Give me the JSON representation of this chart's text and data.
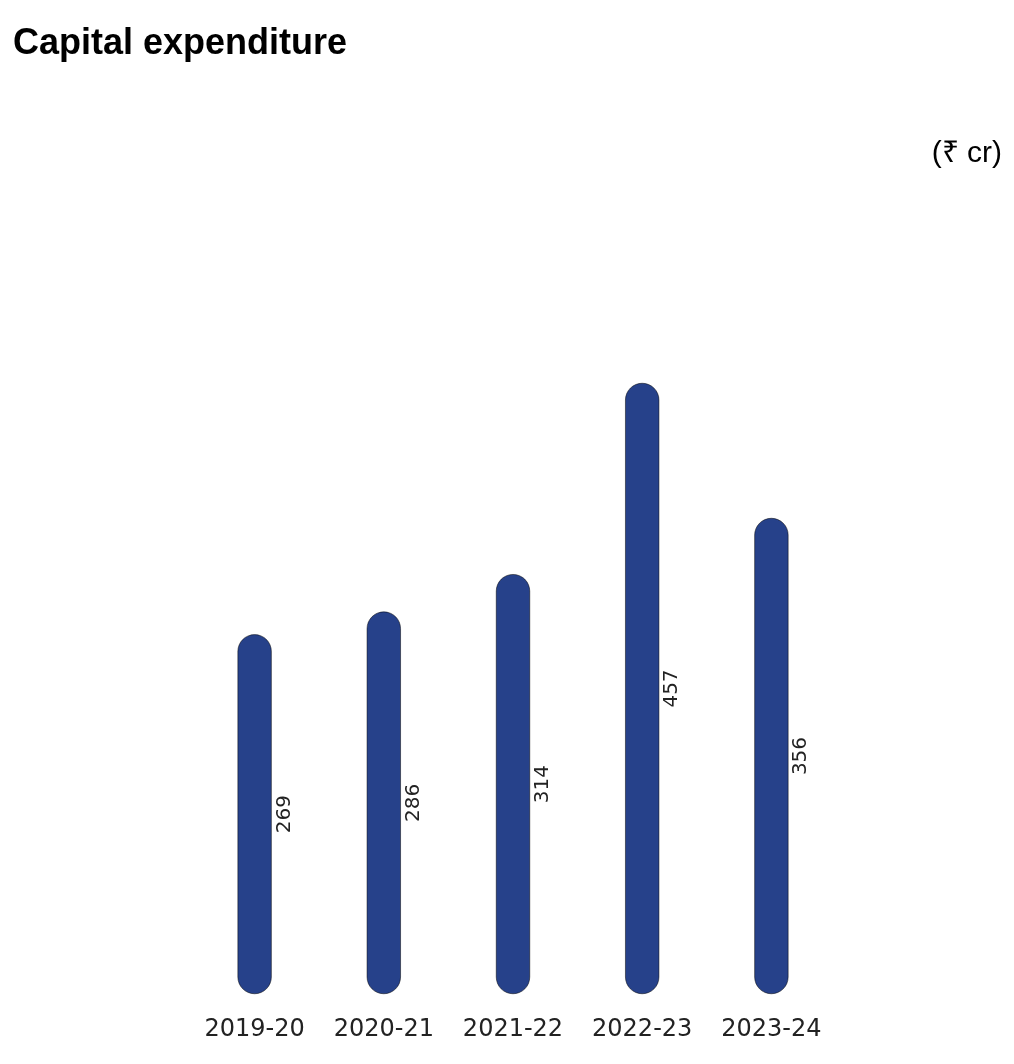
{
  "chart_data": {
    "type": "bar",
    "title": "Capital expenditure",
    "annotations": [
      "(₹ cr)"
    ],
    "categories": [
      "2019-20",
      "2020-21",
      "2021-22",
      "2022-23",
      "2023-24"
    ],
    "values": [
      269,
      286,
      314,
      457,
      356
    ],
    "color": "#26418a",
    "data_labels": true
  }
}
